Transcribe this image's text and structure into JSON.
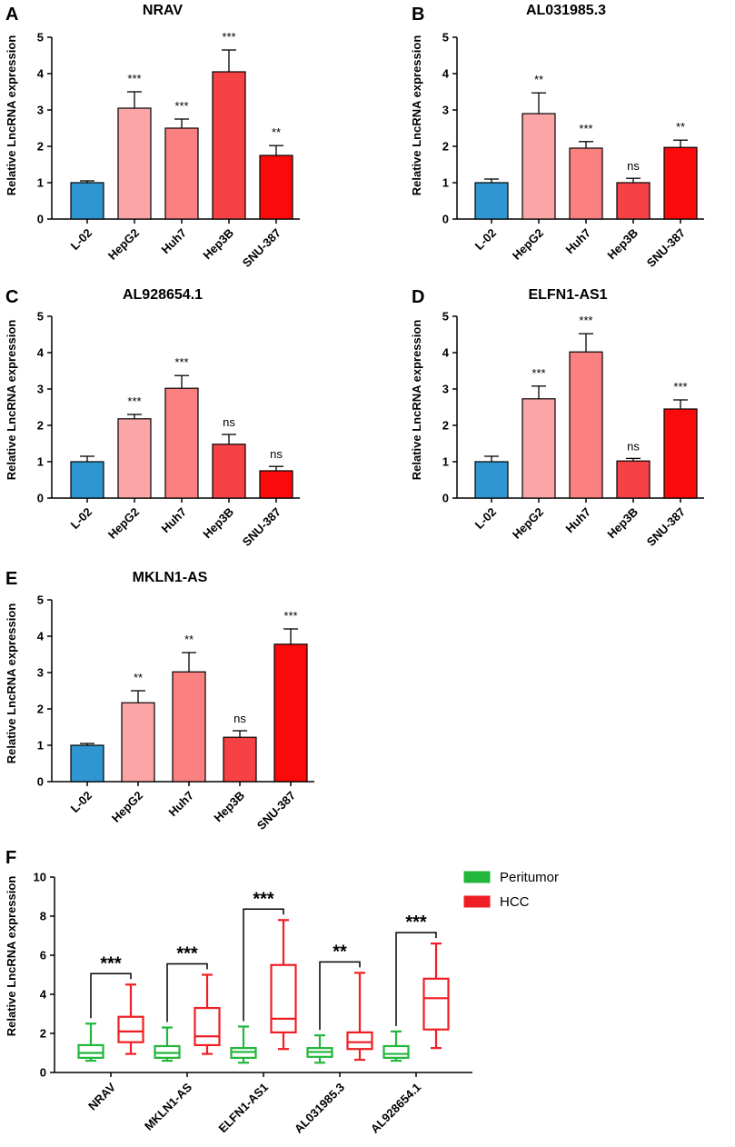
{
  "ylabel": "Relative LncRNA expression",
  "colors": {
    "L-02": "#2f96d1",
    "HepG2": "#fca5a7",
    "Huh7": "#fb8080",
    "Hep3B": "#f64245",
    "SNU-387": "#fb0a0b",
    "peritumor": "#22b63c",
    "hcc": "#ef1e24"
  },
  "chart_data": [
    {
      "panel": "A",
      "type": "bar",
      "title": "NRAV",
      "categories": [
        "L-02",
        "HepG2",
        "Huh7",
        "Hep3B",
        "SNU-387"
      ],
      "values": [
        1.0,
        3.05,
        2.5,
        4.05,
        1.75
      ],
      "errors": [
        0.05,
        0.45,
        0.25,
        0.6,
        0.27
      ],
      "significance": [
        "",
        "***",
        "***",
        "***",
        "**"
      ],
      "ylabel": "Relative LncRNA expression",
      "ylim": [
        0,
        5
      ],
      "yticks": [
        "0",
        "1",
        "2",
        "3",
        "4",
        "5"
      ]
    },
    {
      "panel": "B",
      "type": "bar",
      "title": "AL031985.3",
      "categories": [
        "L-02",
        "HepG2",
        "Huh7",
        "Hep3B",
        "SNU-387"
      ],
      "values": [
        1.0,
        2.9,
        1.95,
        1.0,
        1.97
      ],
      "errors": [
        0.1,
        0.57,
        0.18,
        0.12,
        0.2
      ],
      "significance": [
        "",
        "**",
        "***",
        "ns",
        "**"
      ],
      "ylabel": "Relative LncRNA expression",
      "ylim": [
        0,
        5
      ],
      "yticks": [
        "0",
        "1",
        "2",
        "3",
        "4",
        "5"
      ]
    },
    {
      "panel": "C",
      "type": "bar",
      "title": "AL928654.1",
      "categories": [
        "L-02",
        "HepG2",
        "Huh7",
        "Hep3B",
        "SNU-387"
      ],
      "values": [
        1.0,
        2.18,
        3.02,
        1.48,
        0.75
      ],
      "errors": [
        0.15,
        0.12,
        0.35,
        0.27,
        0.12
      ],
      "significance": [
        "",
        "***",
        "***",
        "ns",
        "ns"
      ],
      "ylabel": "Relative LncRNA expression",
      "ylim": [
        0,
        5
      ],
      "yticks": [
        "0",
        "1",
        "2",
        "3",
        "4",
        "5"
      ]
    },
    {
      "panel": "D",
      "type": "bar",
      "title": "ELFN1-AS1",
      "categories": [
        "L-02",
        "HepG2",
        "Huh7",
        "Hep3B",
        "SNU-387"
      ],
      "values": [
        1.0,
        2.73,
        4.02,
        1.02,
        2.45
      ],
      "errors": [
        0.15,
        0.35,
        0.5,
        0.07,
        0.25
      ],
      "significance": [
        "",
        "***",
        "***",
        "ns",
        "***"
      ],
      "ylabel": "Relative LncRNA expression",
      "ylim": [
        0,
        5
      ],
      "yticks": [
        "0",
        "1",
        "2",
        "3",
        "4",
        "5"
      ]
    },
    {
      "panel": "E",
      "type": "bar",
      "title": "MKLN1-AS",
      "categories": [
        "L-02",
        "HepG2",
        "Huh7",
        "Hep3B",
        "SNU-387"
      ],
      "values": [
        1.0,
        2.17,
        3.02,
        1.22,
        3.78
      ],
      "errors": [
        0.05,
        0.33,
        0.53,
        0.18,
        0.42
      ],
      "significance": [
        "",
        "**",
        "**",
        "ns",
        "***"
      ],
      "ylabel": "Relative LncRNA expression",
      "ylim": [
        0,
        5
      ],
      "yticks": [
        "0",
        "1",
        "2",
        "3",
        "4",
        "5"
      ]
    },
    {
      "panel": "F",
      "type": "boxplot",
      "title": "",
      "categories": [
        "NRAV",
        "MKLN1-AS",
        "ELFN1-AS1",
        "AL031985.3",
        "AL928654.1"
      ],
      "series": [
        {
          "name": "Peritumor",
          "boxes": [
            {
              "min": 0.6,
              "q1": 0.75,
              "median": 1.0,
              "q3": 1.4,
              "max": 2.5
            },
            {
              "min": 0.6,
              "q1": 0.75,
              "median": 1.0,
              "q3": 1.35,
              "max": 2.3
            },
            {
              "min": 0.5,
              "q1": 0.75,
              "median": 1.05,
              "q3": 1.25,
              "max": 2.35
            },
            {
              "min": 0.5,
              "q1": 0.8,
              "median": 1.05,
              "q3": 1.25,
              "max": 1.9
            },
            {
              "min": 0.6,
              "q1": 0.75,
              "median": 0.95,
              "q3": 1.35,
              "max": 2.1
            }
          ]
        },
        {
          "name": "HCC",
          "boxes": [
            {
              "min": 0.95,
              "q1": 1.55,
              "median": 2.1,
              "q3": 2.85,
              "max": 4.5
            },
            {
              "min": 0.95,
              "q1": 1.4,
              "median": 1.85,
              "q3": 3.3,
              "max": 5.0
            },
            {
              "min": 1.2,
              "q1": 2.05,
              "median": 2.75,
              "q3": 5.5,
              "max": 7.8
            },
            {
              "min": 0.65,
              "q1": 1.2,
              "median": 1.55,
              "q3": 2.05,
              "max": 5.1
            },
            {
              "min": 1.25,
              "q1": 2.2,
              "median": 3.8,
              "q3": 4.8,
              "max": 6.6
            }
          ]
        }
      ],
      "significance": [
        "***",
        "***",
        "***",
        "**",
        "***"
      ],
      "ylabel": "Relative LncRNA expression",
      "ylim": [
        0,
        10
      ],
      "yticks": [
        "0",
        "2",
        "4",
        "6",
        "8",
        "10"
      ],
      "legend": [
        "Peritumor",
        "HCC"
      ],
      "legend_position": "top-right"
    }
  ]
}
